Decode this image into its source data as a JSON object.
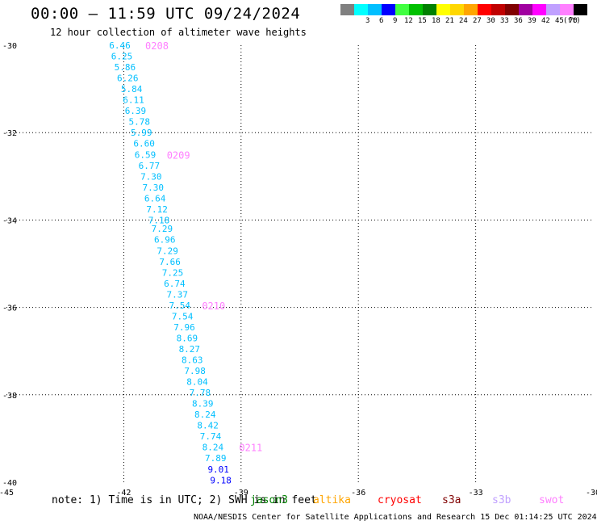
{
  "header": {
    "title": "00:00 – 11:59 UTC 09/24/2024",
    "subtitle": "12 hour collection of altimeter wave heights"
  },
  "legend": {
    "unit": "(ft)",
    "bins": [
      {
        "label": "",
        "color": "#808080"
      },
      {
        "label": "3",
        "color": "#00ffff"
      },
      {
        "label": "6",
        "color": "#00bfff"
      },
      {
        "label": "9",
        "color": "#0000ff"
      },
      {
        "label": "12",
        "color": "#40ff40"
      },
      {
        "label": "15",
        "color": "#00c000"
      },
      {
        "label": "18",
        "color": "#008000"
      },
      {
        "label": "21",
        "color": "#ffff00"
      },
      {
        "label": "24",
        "color": "#ffd700"
      },
      {
        "label": "27",
        "color": "#ffa500"
      },
      {
        "label": "30",
        "color": "#ff0000"
      },
      {
        "label": "33",
        "color": "#c00000"
      },
      {
        "label": "36",
        "color": "#800000"
      },
      {
        "label": "39",
        "color": "#a000a0"
      },
      {
        "label": "42",
        "color": "#ff00ff"
      },
      {
        "label": "45",
        "color": "#c0a0ff"
      },
      {
        "label": "70",
        "color": "#ff80ff"
      },
      {
        "label": "",
        "color": "#000000"
      }
    ]
  },
  "chart_data": {
    "type": "scatter",
    "xlim": [
      -45,
      -30
    ],
    "ylim": [
      -40,
      -30
    ],
    "x_ticks": [
      -45,
      -42,
      -39,
      -36,
      -33,
      -30
    ],
    "y_ticks": [
      -30,
      -32,
      -34,
      -36,
      -38,
      -40
    ],
    "x_tick_labels": [
      "-45",
      "-42",
      "-39",
      "-36",
      "-33",
      "-30"
    ],
    "y_tick_labels": [
      "-30",
      "-32",
      "-34",
      "-36",
      "-38",
      "-40"
    ],
    "grid": true,
    "series": [
      {
        "color": "#00bfff",
        "points": [
          {
            "x": -42.1,
            "y": -30.0,
            "value": "6.46"
          },
          {
            "x": -42.05,
            "y": -30.25,
            "value": "6.25"
          },
          {
            "x": -41.97,
            "y": -30.5,
            "value": "5.86"
          },
          {
            "x": -41.9,
            "y": -30.75,
            "value": "6.26"
          },
          {
            "x": -41.8,
            "y": -31.0,
            "value": "5.84"
          },
          {
            "x": -41.75,
            "y": -31.25,
            "value": "6.11"
          },
          {
            "x": -41.7,
            "y": -31.5,
            "value": "6.39"
          },
          {
            "x": -41.6,
            "y": -31.75,
            "value": "5.78"
          },
          {
            "x": -41.55,
            "y": -32.0,
            "value": "5.99"
          },
          {
            "x": -41.48,
            "y": -32.25,
            "value": "6.60"
          },
          {
            "x": -41.45,
            "y": -32.5,
            "value": "6.59"
          },
          {
            "x": -41.35,
            "y": -32.75,
            "value": "6.77"
          },
          {
            "x": -41.3,
            "y": -33.0,
            "value": "7.30"
          },
          {
            "x": -41.25,
            "y": -33.25,
            "value": "7.30"
          },
          {
            "x": -41.2,
            "y": -33.5,
            "value": "6.64"
          },
          {
            "x": -41.15,
            "y": -33.75,
            "value": "7.12"
          },
          {
            "x": -41.1,
            "y": -34.0,
            "value": "7.18"
          },
          {
            "x": -41.02,
            "y": -34.2,
            "value": "7.29"
          },
          {
            "x": -40.95,
            "y": -34.45,
            "value": "6.96"
          },
          {
            "x": -40.88,
            "y": -34.7,
            "value": "7.29"
          },
          {
            "x": -40.82,
            "y": -34.95,
            "value": "7.66"
          },
          {
            "x": -40.75,
            "y": -35.2,
            "value": "7.25"
          },
          {
            "x": -40.7,
            "y": -35.45,
            "value": "6.74"
          },
          {
            "x": -40.63,
            "y": -35.7,
            "value": "7.37"
          },
          {
            "x": -40.57,
            "y": -35.95,
            "value": "7.54"
          },
          {
            "x": -40.5,
            "y": -36.2,
            "value": "7.54"
          },
          {
            "x": -40.45,
            "y": -36.45,
            "value": "7.96"
          },
          {
            "x": -40.38,
            "y": -36.7,
            "value": "8.69"
          },
          {
            "x": -40.32,
            "y": -36.95,
            "value": "8.27"
          },
          {
            "x": -40.25,
            "y": -37.2,
            "value": "8.63"
          },
          {
            "x": -40.18,
            "y": -37.45,
            "value": "7.98"
          },
          {
            "x": -40.12,
            "y": -37.7,
            "value": "8.04"
          },
          {
            "x": -40.05,
            "y": -37.95,
            "value": "7.78"
          },
          {
            "x": -39.98,
            "y": -38.2,
            "value": "8.39"
          },
          {
            "x": -39.92,
            "y": -38.45,
            "value": "8.24"
          },
          {
            "x": -39.85,
            "y": -38.7,
            "value": "8.42"
          },
          {
            "x": -39.78,
            "y": -38.95,
            "value": "7.74"
          },
          {
            "x": -39.72,
            "y": -39.2,
            "value": "8.24"
          },
          {
            "x": -39.65,
            "y": -39.45,
            "value": "7.89"
          }
        ]
      },
      {
        "color": "#0000ff",
        "points": [
          {
            "x": -39.58,
            "y": -39.7,
            "value": "9.01"
          },
          {
            "x": -39.52,
            "y": -39.95,
            "value": "9.18"
          }
        ]
      }
    ],
    "annotations": [
      {
        "text": "0208",
        "x": -41.45,
        "y": -30.0,
        "color": "#ff80ff"
      },
      {
        "text": "0209",
        "x": -40.9,
        "y": -32.5,
        "color": "#ff80ff"
      },
      {
        "text": "0210",
        "x": -40.0,
        "y": -35.95,
        "color": "#ff80ff"
      },
      {
        "text": "0211",
        "x": -39.05,
        "y": -39.2,
        "color": "#ff80ff"
      }
    ]
  },
  "footer": {
    "note": "note: 1) Time is in UTC; 2) SWH is in feet",
    "satellites": [
      {
        "label": "jason3",
        "color": "#008000"
      },
      {
        "label": "altika",
        "color": "#ffa500"
      },
      {
        "label": "cryosat",
        "color": "#ff0000"
      },
      {
        "label": "s3a",
        "color": "#800000"
      },
      {
        "label": "s3b",
        "color": "#c0a0ff"
      },
      {
        "label": "swot",
        "color": "#ff80ff"
      }
    ],
    "credit": "NOAA/NESDIS Center for Satellite Applications and Research    15 Dec 01:14:25 UTC 2024"
  }
}
